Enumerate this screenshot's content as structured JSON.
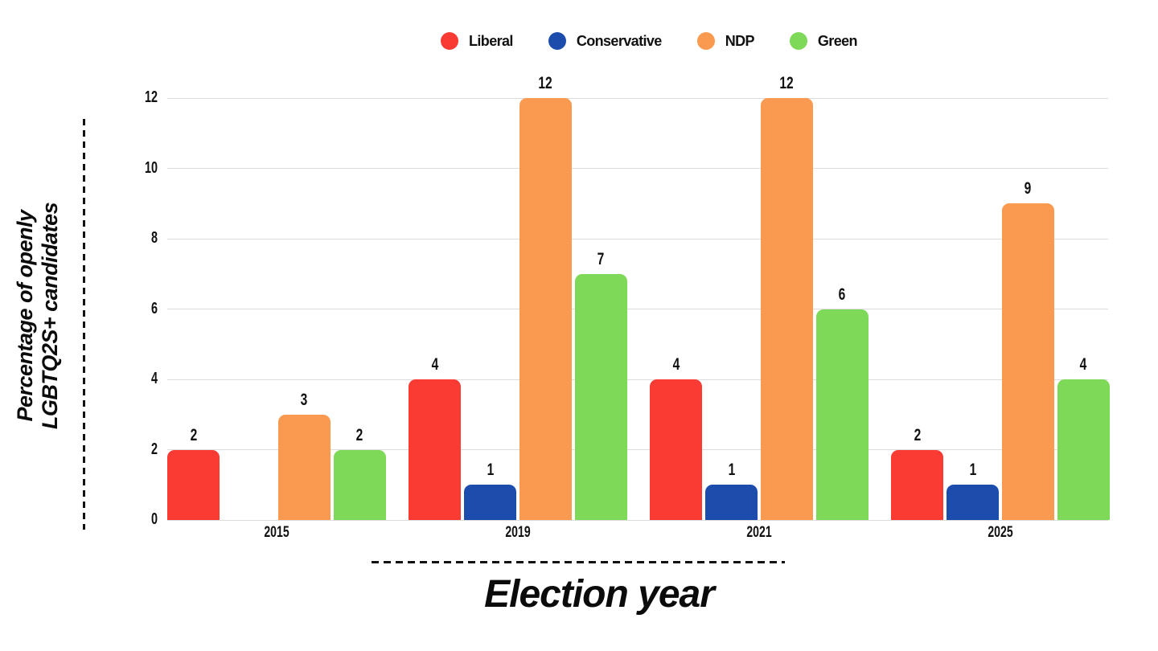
{
  "chart_data": {
    "type": "bar",
    "title": "",
    "xlabel": "Election year",
    "ylabel": "Percentage of openly LGBTQ2S+ candidates",
    "ylabel_lines": [
      "Percentage of openly",
      "LGBTQ2S+ candidates"
    ],
    "categories": [
      "2015",
      "2019",
      "2021",
      "2025"
    ],
    "series": [
      {
        "name": "Liberal",
        "color": "#f93b34",
        "values": [
          2,
          4,
          4,
          2
        ]
      },
      {
        "name": "Conservative",
        "color": "#1c4dad",
        "values": [
          null,
          1,
          1,
          1
        ]
      },
      {
        "name": "NDP",
        "color": "#fa9a50",
        "values": [
          3,
          12,
          12,
          9
        ]
      },
      {
        "name": "Green",
        "color": "#7dd957",
        "values": [
          2,
          7,
          6,
          4
        ]
      }
    ],
    "y_ticks": [
      0,
      2,
      4,
      6,
      8,
      10,
      12
    ],
    "ylim": [
      0,
      12
    ],
    "grid": true,
    "gridline_color": "#dcdcdc",
    "text_color": "#111111",
    "legend_position": "top"
  }
}
